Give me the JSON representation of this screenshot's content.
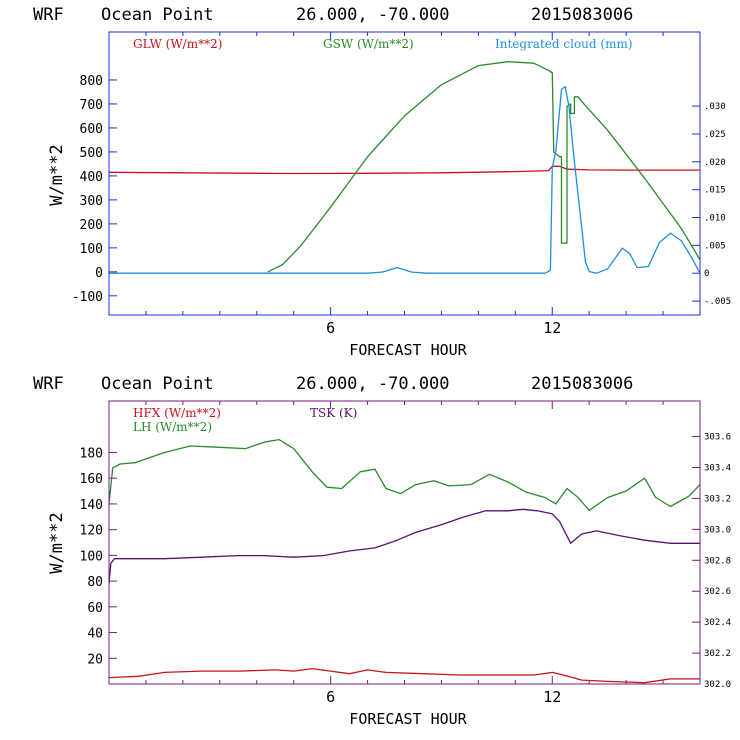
{
  "colors": {
    "frame_top": "#1a30d8",
    "frame_bottom": "#7a1a86",
    "glw": "#c8121e",
    "gsw": "#2a8a2a",
    "cloud": "#1f8ee0",
    "hfx": "#c8121e",
    "lh": "#2a8a2a",
    "tsk": "#5a1070",
    "text": "#000000"
  },
  "chart_data": [
    {
      "type": "line",
      "header": {
        "model": "WRF",
        "location": "Ocean Point",
        "coords": "26.000, -70.000",
        "date": "2015083006"
      },
      "xlabel": "FORECAST HOUR",
      "ylabel": "W/m**2",
      "xlim": [
        0,
        16
      ],
      "ylim": [
        -180,
        1000
      ],
      "xticks": [
        6,
        12
      ],
      "yticks": [
        -100,
        0,
        100,
        200,
        300,
        400,
        500,
        600,
        700,
        800
      ],
      "y2lim": [
        -0.0075,
        0.0433
      ],
      "y2ticks": [
        {
          "v": 0.03,
          "label": ".030"
        },
        {
          "v": 0.025,
          "label": ".025"
        },
        {
          "v": 0.02,
          "label": ".020"
        },
        {
          "v": 0.015,
          "label": ".015"
        },
        {
          "v": 0.01,
          "label": ".010"
        },
        {
          "v": 0.005,
          "label": ".005"
        },
        {
          "v": 0.0,
          "label": "0"
        },
        {
          "v": -0.005,
          "label": "-.005"
        }
      ],
      "series": [
        {
          "name": "GLW (W/m**2)",
          "color_key": "glw",
          "axis": "left",
          "x": [
            0,
            2,
            4,
            5,
            7,
            9,
            11,
            11.9,
            12,
            12.2,
            12.4,
            13,
            14,
            15,
            16
          ],
          "y": [
            415,
            413,
            411,
            410,
            411,
            413,
            418,
            422,
            440,
            440,
            428,
            425,
            424,
            424,
            424
          ]
        },
        {
          "name": "GSW (W/m**2)",
          "color_key": "gsw",
          "axis": "left",
          "x": [
            4.3,
            4.7,
            5.2,
            6,
            7,
            8,
            9,
            10,
            10.8,
            11.5,
            11.9,
            12.0,
            12.04,
            12.2,
            12.25,
            12.25,
            12.4,
            12.4,
            12.5,
            12.5,
            12.6,
            12.6,
            12.7,
            12.8,
            13.5,
            14.5,
            15.5,
            16
          ],
          "y": [
            0,
            30,
            110,
            270,
            480,
            650,
            780,
            860,
            876,
            870,
            840,
            830,
            500,
            480,
            480,
            120,
            120,
            690,
            700,
            660,
            660,
            730,
            730,
            710,
            590,
            390,
            180,
            50
          ]
        },
        {
          "name": "Integrated cloud (mm)",
          "color_key": "cloud",
          "axis": "right",
          "x": [
            0,
            5,
            7,
            7.4,
            7.8,
            8.2,
            8.6,
            11.8,
            11.95,
            12.0,
            12.1,
            12.25,
            12.35,
            12.45,
            12.6,
            12.8,
            12.9,
            13.0,
            13.2,
            13.5,
            13.9,
            14.1,
            14.3,
            14.6,
            14.9,
            15.2,
            15.5,
            15.8,
            16
          ],
          "y": [
            0,
            0,
            0,
            0.0002,
            0.001,
            0.0002,
            0,
            0,
            0.0005,
            0.019,
            0.022,
            0.033,
            0.0335,
            0.03,
            0.02,
            0.008,
            0.002,
            0.0003,
            0,
            0.0008,
            0.0045,
            0.0035,
            0.001,
            0.0012,
            0.0055,
            0.0072,
            0.0058,
            0.0025,
            0
          ]
        }
      ]
    },
    {
      "type": "line",
      "header": {
        "model": "WRF",
        "location": "Ocean Point",
        "coords": "26.000, -70.000",
        "date": "2015083006"
      },
      "xlabel": "FORECAST HOUR",
      "ylabel": "W/m**2",
      "xlim": [
        0,
        16
      ],
      "ylim": [
        0,
        220
      ],
      "xticks": [
        6,
        12
      ],
      "yticks": [
        20,
        40,
        60,
        80,
        100,
        120,
        140,
        160,
        180
      ],
      "y2lim": [
        302.0,
        303.83
      ],
      "y2ticks": [
        {
          "v": 303.6,
          "label": "303.6"
        },
        {
          "v": 303.4,
          "label": "303.4"
        },
        {
          "v": 303.2,
          "label": "303.2"
        },
        {
          "v": 303.0,
          "label": "303.0"
        },
        {
          "v": 302.8,
          "label": "302.8"
        },
        {
          "v": 302.6,
          "label": "302.6"
        },
        {
          "v": 302.4,
          "label": "302.4"
        },
        {
          "v": 302.2,
          "label": "302.2"
        },
        {
          "v": 302.0,
          "label": "302.0"
        }
      ],
      "series": [
        {
          "name": "HFX (W/m**2)",
          "color_key": "hfx",
          "axis": "left",
          "x": [
            0,
            0.8,
            1.5,
            2.5,
            3.5,
            4.5,
            5.0,
            5.5,
            6.0,
            6.5,
            7.0,
            7.5,
            8.5,
            9.5,
            10.5,
            11.5,
            12.0,
            12.3,
            12.8,
            13.5,
            14.5,
            15.2,
            16
          ],
          "y": [
            5,
            6,
            9,
            10,
            10,
            11,
            10,
            12,
            10,
            8,
            11,
            9,
            8,
            7,
            7,
            7,
            9,
            7,
            3,
            2,
            1,
            4,
            4
          ]
        },
        {
          "name": "LH  (W/m**2)",
          "color_key": "lh",
          "axis": "left",
          "x": [
            0,
            0.1,
            0.3,
            0.7,
            1.5,
            2.2,
            3.0,
            3.7,
            4.2,
            4.6,
            5.0,
            5.5,
            5.9,
            6.3,
            6.8,
            7.2,
            7.5,
            7.9,
            8.3,
            8.8,
            9.2,
            9.8,
            10.3,
            10.8,
            11.3,
            11.8,
            12.1,
            12.4,
            12.7,
            13.0,
            13.5,
            14.0,
            14.5,
            14.8,
            15.2,
            15.7,
            16
          ],
          "y": [
            140,
            168,
            171,
            172,
            180,
            185,
            184,
            183,
            188,
            190,
            183,
            165,
            153,
            152,
            165,
            167,
            152,
            148,
            155,
            158,
            154,
            155,
            163,
            157,
            149,
            145,
            140,
            152,
            145,
            135,
            145,
            150,
            160,
            145,
            138,
            146,
            155
          ]
        },
        {
          "name": "TSK (K)",
          "color_key": "tsk",
          "axis": "right",
          "x": [
            0,
            0.05,
            0.15,
            0.5,
            1.5,
            2.5,
            3.5,
            4.2,
            5.0,
            5.8,
            6.5,
            7.2,
            7.8,
            8.3,
            9.0,
            9.6,
            10.2,
            10.8,
            11.2,
            11.6,
            12.0,
            12.2,
            12.5,
            12.8,
            13.2,
            13.8,
            14.5,
            15.2,
            16
          ],
          "y": [
            302.65,
            302.78,
            302.81,
            302.81,
            302.81,
            302.82,
            302.83,
            302.83,
            302.82,
            302.83,
            302.86,
            302.88,
            302.93,
            302.98,
            303.03,
            303.08,
            303.12,
            303.12,
            303.13,
            303.12,
            303.1,
            303.05,
            302.91,
            302.97,
            302.99,
            302.96,
            302.93,
            302.91,
            302.91
          ]
        }
      ]
    }
  ]
}
